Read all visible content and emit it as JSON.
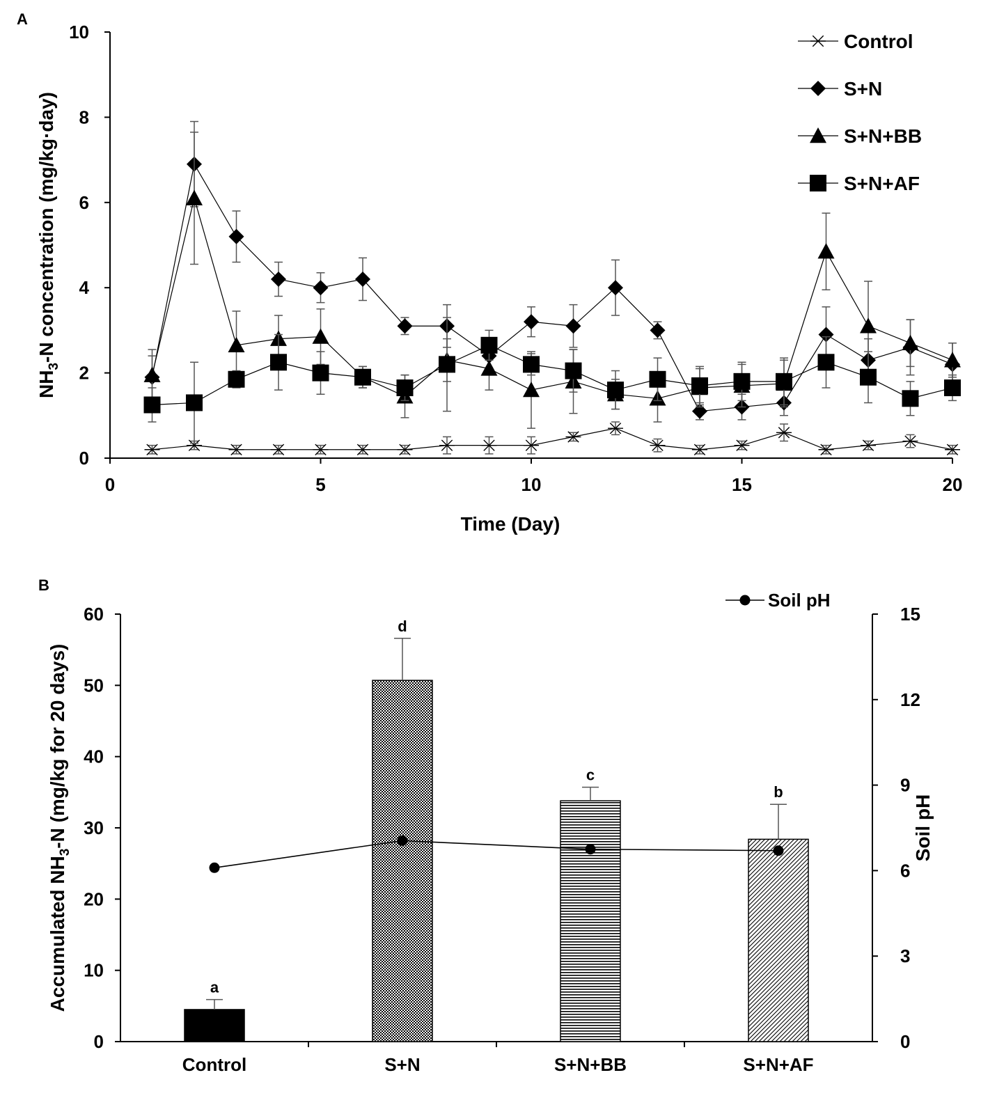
{
  "chart_data": [
    {
      "panel": "A",
      "type": "line",
      "xlabel": "Time (Day)",
      "ylabel_prefix": "NH",
      "ylabel_sub": "3",
      "ylabel_suffix": "-N concentration (mg/kg·day)",
      "xlim": [
        0,
        20
      ],
      "ylim": [
        0,
        10
      ],
      "xticks": [
        0,
        5,
        10,
        15,
        20
      ],
      "yticks": [
        0,
        2,
        4,
        6,
        8,
        10
      ],
      "legend_position": "top-right",
      "x": [
        1,
        2,
        3,
        4,
        5,
        6,
        7,
        8,
        9,
        10,
        11,
        12,
        13,
        14,
        15,
        16,
        17,
        18,
        19,
        20
      ],
      "series": [
        {
          "name": "Control",
          "marker": "asterisk",
          "values": [
            0.2,
            0.3,
            0.2,
            0.2,
            0.2,
            0.2,
            0.2,
            0.3,
            0.3,
            0.3,
            0.5,
            0.7,
            0.3,
            0.2,
            0.3,
            0.6,
            0.2,
            0.3,
            0.4,
            0.2
          ],
          "errors": [
            0.1,
            0.1,
            0.1,
            0.1,
            0.1,
            0.1,
            0.1,
            0.2,
            0.2,
            0.2,
            0.1,
            0.15,
            0.15,
            0.1,
            0.1,
            0.2,
            0.1,
            0.1,
            0.15,
            0.1
          ]
        },
        {
          "name": "S+N",
          "marker": "diamond",
          "values": [
            1.9,
            6.9,
            5.2,
            4.2,
            4.0,
            4.2,
            3.1,
            3.1,
            2.4,
            3.2,
            3.1,
            4.0,
            3.0,
            1.1,
            1.2,
            1.3,
            2.9,
            2.3,
            2.6,
            2.2
          ],
          "errors": [
            0.5,
            1.0,
            0.6,
            0.4,
            0.35,
            0.5,
            0.2,
            0.5,
            0.3,
            0.35,
            0.5,
            0.65,
            0.2,
            0.2,
            0.3,
            0.3,
            0.65,
            0.5,
            0.65,
            0.5
          ]
        },
        {
          "name": "S+N+BB",
          "marker": "triangle",
          "values": [
            1.95,
            6.1,
            2.65,
            2.8,
            2.85,
            1.9,
            1.45,
            2.3,
            2.1,
            1.6,
            1.8,
            1.5,
            1.4,
            1.65,
            1.7,
            1.75,
            4.85,
            3.1,
            2.7,
            2.3
          ],
          "errors": [
            0.6,
            1.55,
            0.8,
            0.55,
            0.65,
            0.25,
            0.5,
            0.5,
            0.5,
            0.9,
            0.75,
            0.35,
            0.55,
            0.45,
            0.5,
            0.55,
            0.9,
            1.05,
            0.55,
            0.4
          ]
        },
        {
          "name": "S+N+AF",
          "marker": "square",
          "values": [
            1.25,
            1.3,
            1.85,
            2.25,
            2.0,
            1.9,
            1.65,
            2.2,
            2.65,
            2.2,
            2.05,
            1.6,
            1.85,
            1.7,
            1.8,
            1.8,
            2.25,
            1.9,
            1.4,
            1.65
          ],
          "errors": [
            0.4,
            0.95,
            0.2,
            0.65,
            0.5,
            0.25,
            0.3,
            1.1,
            0.35,
            0.25,
            0.5,
            0.45,
            0.5,
            0.45,
            0.45,
            0.55,
            0.6,
            0.6,
            0.4,
            0.3
          ]
        }
      ]
    },
    {
      "panel": "B",
      "type": "bar",
      "categories": [
        "Control",
        "S+N",
        "S+N+BB",
        "S+N+AF"
      ],
      "ylabel_prefix": "Accumulated NH",
      "ylabel_sub": "3",
      "ylabel_suffix": "-N (mg/kg for 20 days)",
      "y2label": "Soil pH",
      "ylim": [
        0,
        60
      ],
      "yticks": [
        0,
        10,
        20,
        30,
        40,
        50,
        60
      ],
      "y2lim": [
        0,
        15
      ],
      "y2ticks": [
        0,
        3,
        6,
        9,
        12,
        15
      ],
      "values": [
        4.5,
        50.7,
        33.8,
        28.4
      ],
      "errors": [
        1.4,
        5.9,
        1.9,
        4.9
      ],
      "letters": [
        "a",
        "d",
        "c",
        "b"
      ],
      "fills": [
        "solid",
        "dots",
        "hstripes",
        "diagonal"
      ],
      "line_series": {
        "name": "Soil pH",
        "values": [
          6.1,
          7.05,
          6.75,
          6.7
        ]
      },
      "legend_position": "top-right"
    }
  ]
}
